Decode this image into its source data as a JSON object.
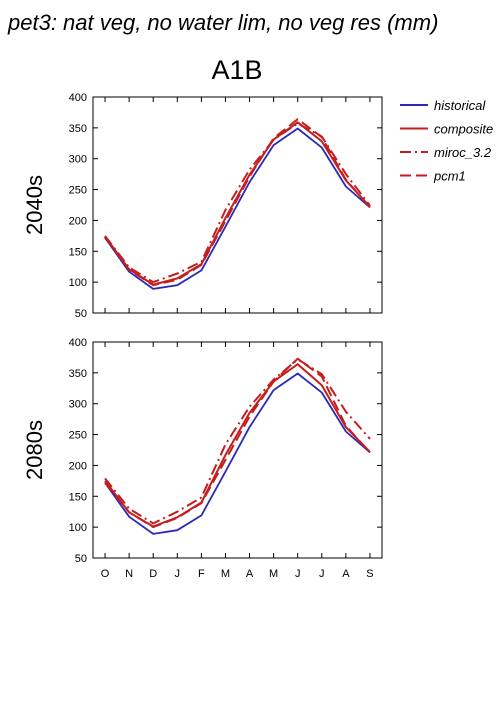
{
  "page": {
    "title": "pet3: nat veg, no water lim, no veg res (mm)",
    "column_header": "A1B"
  },
  "colors": {
    "historical": "#2a2ab8",
    "future": "#c41e1e"
  },
  "legend": [
    {
      "label": "historical",
      "color": "#2a2ab8",
      "dash": "solid"
    },
    {
      "label": "composite",
      "color": "#c41e1e",
      "dash": "solid"
    },
    {
      "label": "miroc_3.2",
      "color": "#c41e1e",
      "dash": "dashdot"
    },
    {
      "label": "pcm1",
      "color": "#c41e1e",
      "dash": "dashed"
    }
  ],
  "chart_data": [
    {
      "type": "line",
      "row_label": "2040s",
      "categories": [
        "O",
        "N",
        "D",
        "J",
        "F",
        "M",
        "A",
        "M",
        "J",
        "J",
        "A",
        "S"
      ],
      "ylim": [
        50,
        400
      ],
      "yticks": [
        50,
        100,
        150,
        200,
        250,
        300,
        350,
        400
      ],
      "series": [
        {
          "name": "historical",
          "values": [
            172,
            117,
            89,
            95,
            119,
            190,
            262,
            322,
            349,
            318,
            255,
            221
          ]
        },
        {
          "name": "composite",
          "values": [
            174,
            121,
            96,
            106,
            129,
            204,
            274,
            331,
            359,
            328,
            265,
            222
          ]
        },
        {
          "name": "miroc_3.2",
          "values": [
            175,
            124,
            100,
            114,
            133,
            217,
            282,
            331,
            357,
            336,
            275,
            224
          ]
        },
        {
          "name": "pcm1",
          "values": [
            173,
            120,
            95,
            104,
            128,
            199,
            271,
            333,
            364,
            335,
            266,
            221
          ]
        }
      ]
    },
    {
      "type": "line",
      "row_label": "2080s",
      "categories": [
        "O",
        "N",
        "D",
        "J",
        "F",
        "M",
        "A",
        "M",
        "J",
        "J",
        "A",
        "S"
      ],
      "ylim": [
        50,
        400
      ],
      "yticks": [
        50,
        100,
        150,
        200,
        250,
        300,
        350,
        400
      ],
      "series": [
        {
          "name": "historical",
          "values": [
            172,
            117,
            89,
            95,
            119,
            190,
            262,
            322,
            349,
            318,
            255,
            221
          ]
        },
        {
          "name": "composite",
          "values": [
            175,
            124,
            101,
            116,
            140,
            217,
            285,
            336,
            364,
            330,
            262,
            222
          ]
        },
        {
          "name": "miroc_3.2",
          "values": [
            179,
            130,
            106,
            125,
            148,
            234,
            295,
            339,
            372,
            348,
            287,
            243
          ]
        },
        {
          "name": "pcm1",
          "values": [
            172,
            124,
            100,
            115,
            139,
            209,
            279,
            336,
            373,
            344,
            264,
            221
          ]
        }
      ]
    }
  ]
}
